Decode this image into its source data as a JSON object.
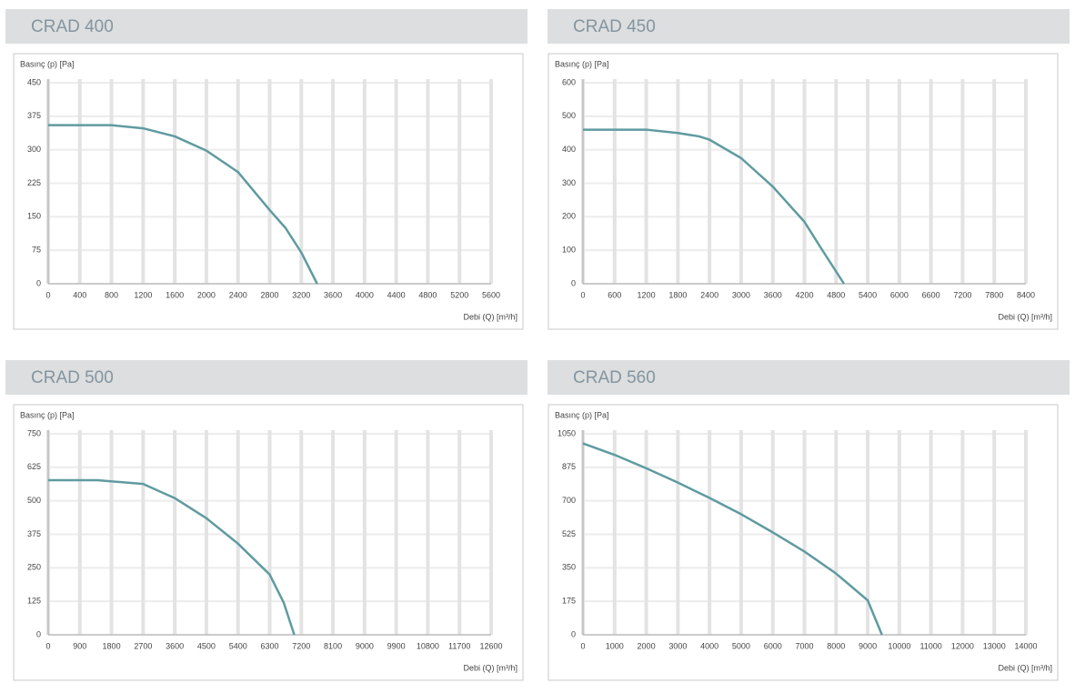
{
  "chart_data": [
    {
      "type": "line",
      "title": "CRAD 400",
      "ylabel": "Basınç (p) [Pa]",
      "xlabel": "Debi (Q) [m³/h]",
      "x": [
        0,
        400,
        800,
        1200,
        1600,
        2000,
        2400,
        2800,
        3000,
        3200,
        3400
      ],
      "values": [
        355,
        355,
        355,
        348,
        330,
        298,
        250,
        165,
        125,
        70,
        0
      ],
      "color": "#5f9ba0",
      "xlim": [
        0,
        5600
      ],
      "ylim": [
        0,
        450
      ],
      "xticks": [
        0,
        400,
        800,
        1200,
        1600,
        2000,
        2400,
        2800,
        3200,
        3600,
        4000,
        4400,
        4800,
        5200,
        5600
      ],
      "yticks": [
        0,
        75,
        150,
        225,
        300,
        375,
        450
      ],
      "grid": true
    },
    {
      "type": "line",
      "title": "CRAD 450",
      "ylabel": "Basınç (p) [Pa]",
      "xlabel": "Debi (Q) [m³/h]",
      "x": [
        0,
        600,
        1200,
        1800,
        2200,
        2400,
        3000,
        3600,
        4200,
        4500,
        4950
      ],
      "values": [
        460,
        460,
        460,
        450,
        440,
        430,
        375,
        290,
        185,
        110,
        0
      ],
      "color": "#5f9ba0",
      "xlim": [
        0,
        8400
      ],
      "ylim": [
        0,
        600
      ],
      "xticks": [
        0,
        600,
        1200,
        1800,
        2400,
        3000,
        3600,
        4200,
        4800,
        5400,
        6000,
        6600,
        7200,
        7800,
        8400
      ],
      "yticks": [
        0,
        100,
        200,
        300,
        400,
        500,
        600
      ],
      "grid": true
    },
    {
      "type": "line",
      "title": "CRAD 500",
      "ylabel": "Basınç (p) [Pa]",
      "xlabel": "Debi (Q) [m³/h]",
      "x": [
        0,
        1400,
        2700,
        3600,
        4500,
        5400,
        6300,
        6700,
        7000
      ],
      "values": [
        577,
        577,
        563,
        510,
        435,
        340,
        225,
        120,
        0
      ],
      "color": "#5f9ba0",
      "xlim": [
        0,
        12600
      ],
      "ylim": [
        0,
        750
      ],
      "xticks": [
        0,
        900,
        1800,
        2700,
        3600,
        4500,
        5400,
        6300,
        7200,
        8100,
        9000,
        9900,
        10800,
        11700,
        12600
      ],
      "yticks": [
        0,
        125,
        250,
        375,
        500,
        625,
        750
      ],
      "grid": true
    },
    {
      "type": "line",
      "title": "CRAD 560",
      "ylabel": "Basınç (p) [Pa]",
      "xlabel": "Debi (Q) [m³/h]",
      "x": [
        0,
        1000,
        2000,
        3000,
        4000,
        5000,
        6000,
        7000,
        8000,
        9000,
        9450
      ],
      "values": [
        1000,
        940,
        870,
        795,
        715,
        630,
        535,
        435,
        320,
        180,
        0
      ],
      "color": "#5f9ba0",
      "xlim": [
        0,
        14000
      ],
      "ylim": [
        0,
        1050
      ],
      "xticks": [
        0,
        1000,
        2000,
        3000,
        4000,
        5000,
        6000,
        7000,
        8000,
        9000,
        10000,
        11000,
        12000,
        13000,
        14000
      ],
      "yticks": [
        0,
        175,
        350,
        525,
        700,
        875,
        1050
      ],
      "grid": true
    }
  ]
}
